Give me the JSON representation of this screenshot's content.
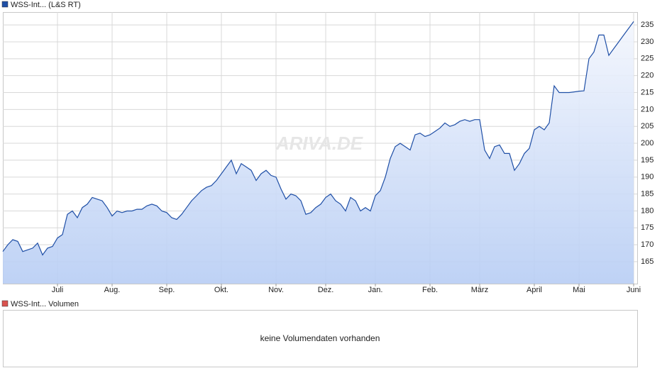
{
  "chart_data": [
    {
      "type": "area",
      "series": [
        {
          "name": "WSS-Int... (L&S RT)",
          "color": "#1f4fa6",
          "values": [
            168,
            170,
            171.5,
            171,
            168,
            168.5,
            169,
            170.5,
            167,
            169,
            169.5,
            172,
            173,
            179,
            180,
            178,
            181,
            182,
            184,
            183.5,
            183,
            181,
            178.5,
            180,
            179.5,
            180,
            180,
            180.5,
            180.5,
            181.5,
            182,
            181.5,
            180,
            179.5,
            178,
            177.5,
            179,
            181,
            183,
            184.5,
            186,
            187,
            187.5,
            189,
            191,
            193,
            195,
            191,
            194,
            193,
            192,
            189,
            191,
            192,
            190.5,
            190,
            186.5,
            183.5,
            185,
            184.5,
            183,
            179,
            179.5,
            181,
            182,
            184,
            185,
            183,
            182,
            180,
            184,
            183,
            180,
            181,
            180,
            184.5,
            186,
            190,
            195.5,
            199,
            200,
            199,
            198,
            202.5,
            203,
            202,
            202.5,
            203.5,
            204.5,
            206,
            205,
            205.5,
            206.5,
            207,
            206.5,
            207,
            207,
            198,
            195.5,
            199,
            199.5,
            197,
            197,
            192,
            194,
            197,
            198.5,
            204,
            205,
            204,
            206,
            217,
            215,
            215,
            215,
            215.2,
            215.4,
            215.5,
            225,
            227,
            232,
            232,
            226,
            228,
            230,
            232,
            234,
            236
          ]
        }
      ],
      "categories": [
        null,
        null,
        null,
        null,
        null,
        null,
        null,
        null,
        null,
        null,
        null,
        "Juli",
        null,
        null,
        null,
        null,
        null,
        null,
        null,
        null,
        null,
        null,
        "Aug.",
        null,
        null,
        null,
        null,
        null,
        null,
        null,
        null,
        null,
        null,
        "Sep.",
        null,
        null,
        null,
        null,
        null,
        null,
        null,
        null,
        null,
        null,
        "Okt.",
        null,
        null,
        null,
        null,
        null,
        null,
        null,
        null,
        null,
        null,
        "Nov.",
        null,
        null,
        null,
        null,
        null,
        null,
        null,
        null,
        null,
        "Dez.",
        null,
        null,
        null,
        null,
        null,
        null,
        null,
        null,
        null,
        "Jan.",
        null,
        null,
        null,
        null,
        null,
        null,
        null,
        null,
        null,
        null,
        "Feb.",
        null,
        null,
        null,
        null,
        null,
        null,
        null,
        null,
        null,
        "März",
        null,
        null,
        null,
        null,
        null,
        null,
        null,
        null,
        null,
        null,
        "April",
        null,
        null,
        null,
        null,
        null,
        null,
        null,
        null,
        "Mai",
        null,
        null,
        null,
        null,
        null,
        null,
        null,
        null,
        null,
        null,
        "Juni"
      ],
      "ylim": [
        158.5,
        238.8
      ],
      "yticks": [
        165,
        170,
        175,
        180,
        185,
        190,
        195,
        200,
        205,
        210,
        215,
        220,
        225,
        230,
        235
      ],
      "grid": true,
      "watermark": "ARIVA.DE"
    },
    {
      "type": "empty",
      "series": [
        {
          "name": "WSS-Int... Volumen",
          "color": "#d9534f"
        }
      ],
      "message": "keine Volumendaten vorhanden"
    }
  ]
}
